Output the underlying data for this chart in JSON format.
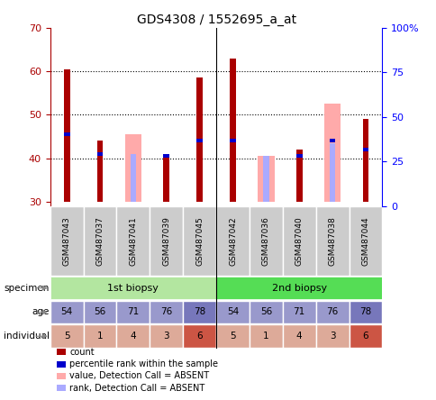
{
  "title": "GDS4308 / 1552695_a_at",
  "samples": [
    "GSM487043",
    "GSM487037",
    "GSM487041",
    "GSM487039",
    "GSM487045",
    "GSM487042",
    "GSM487036",
    "GSM487040",
    "GSM487038",
    "GSM487044"
  ],
  "count_values": [
    60.5,
    44.0,
    null,
    40.5,
    58.5,
    63.0,
    null,
    42.0,
    null,
    49.0
  ],
  "percentile_values": [
    45.5,
    41.0,
    null,
    40.5,
    44.0,
    44.0,
    null,
    40.5,
    44.0,
    42.0
  ],
  "absent_value_bars": [
    null,
    null,
    45.5,
    null,
    null,
    null,
    40.5,
    null,
    52.5,
    null
  ],
  "absent_rank_bars": [
    null,
    null,
    41.0,
    null,
    null,
    null,
    40.5,
    null,
    43.5,
    null
  ],
  "ylim": [
    29,
    70
  ],
  "yticks": [
    30,
    40,
    50,
    60,
    70
  ],
  "y2lim": [
    0,
    100
  ],
  "y2ticks": [
    0,
    25,
    50,
    75,
    100
  ],
  "y2ticklabels": [
    "0",
    "25",
    "50",
    "75",
    "100%"
  ],
  "bar_bottom": 30,
  "specimen_labels": [
    "1st biopsy",
    "2nd biopsy"
  ],
  "specimen_spans": [
    [
      0,
      5
    ],
    [
      5,
      10
    ]
  ],
  "specimen_colors": [
    "#b3e6a0",
    "#55dd55"
  ],
  "age_values": [
    54,
    56,
    71,
    76,
    78,
    54,
    56,
    71,
    76,
    78
  ],
  "age_color_light": "#9999cc",
  "age_color_dark": "#7777bb",
  "individual_values": [
    5,
    1,
    4,
    3,
    6,
    5,
    1,
    4,
    3,
    6
  ],
  "individual_colors": [
    "#ddaa99",
    "#ddaa99",
    "#ddaa99",
    "#ddaa99",
    "#cc5544",
    "#ddaa99",
    "#ddaa99",
    "#ddaa99",
    "#ddaa99",
    "#cc5544"
  ],
  "count_color": "#aa0000",
  "percentile_color": "#0000cc",
  "absent_value_color": "#ffaaaa",
  "absent_rank_color": "#aaaaff",
  "bg_color": "#ffffff",
  "sample_box_color": "#cccccc",
  "divider_col": 4
}
